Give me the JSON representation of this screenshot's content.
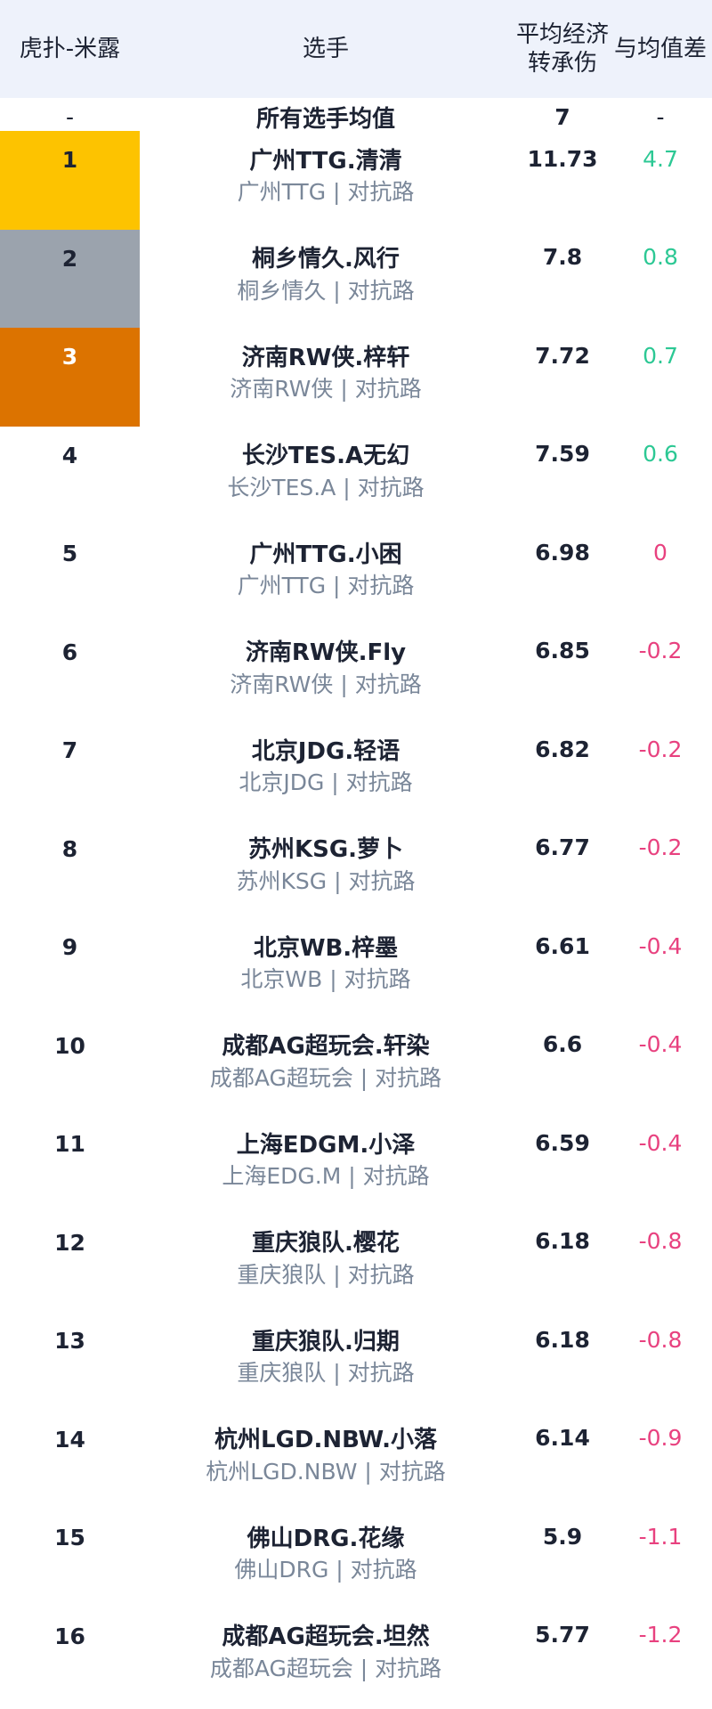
{
  "header": {
    "columns": [
      "虎扑-米露",
      "选手",
      "平均经济转承伤",
      "与均值差"
    ]
  },
  "average_row": {
    "rank": "-",
    "name": "所有选手均值",
    "value": "7",
    "diff": "-"
  },
  "rows": [
    {
      "rank": "1",
      "name": "广州TTG.清清",
      "subtitle": "广州TTG | 对抗路",
      "value": "11.73",
      "diff": "4.7"
    },
    {
      "rank": "2",
      "name": "桐乡情久.风行",
      "subtitle": "桐乡情久 | 对抗路",
      "value": "7.8",
      "diff": "0.8"
    },
    {
      "rank": "3",
      "name": "济南RW侠.梓轩",
      "subtitle": "济南RW侠 | 对抗路",
      "value": "7.72",
      "diff": "0.7"
    },
    {
      "rank": "4",
      "name": "长沙TES.A无幻",
      "subtitle": "长沙TES.A | 对抗路",
      "value": "7.59",
      "diff": "0.6"
    },
    {
      "rank": "5",
      "name": "广州TTG.小困",
      "subtitle": "广州TTG | 对抗路",
      "value": "6.98",
      "diff": "0"
    },
    {
      "rank": "6",
      "name": "济南RW侠.Fly",
      "subtitle": "济南RW侠 | 对抗路",
      "value": "6.85",
      "diff": "-0.2"
    },
    {
      "rank": "7",
      "name": "北京JDG.轻语",
      "subtitle": "北京JDG | 对抗路",
      "value": "6.82",
      "diff": "-0.2"
    },
    {
      "rank": "8",
      "name": "苏州KSG.萝卜",
      "subtitle": "苏州KSG | 对抗路",
      "value": "6.77",
      "diff": "-0.2"
    },
    {
      "rank": "9",
      "name": "北京WB.梓墨",
      "subtitle": "北京WB | 对抗路",
      "value": "6.61",
      "diff": "-0.4"
    },
    {
      "rank": "10",
      "name": "成都AG超玩会.轩染",
      "subtitle": "成都AG超玩会 | 对抗路",
      "value": "6.6",
      "diff": "-0.4"
    },
    {
      "rank": "11",
      "name": "上海EDGM.小泽",
      "subtitle": "上海EDG.M | 对抗路",
      "value": "6.59",
      "diff": "-0.4"
    },
    {
      "rank": "12",
      "name": "重庆狼队.樱花",
      "subtitle": "重庆狼队 | 对抗路",
      "value": "6.18",
      "diff": "-0.8"
    },
    {
      "rank": "13",
      "name": "重庆狼队.归期",
      "subtitle": "重庆狼队 | 对抗路",
      "value": "6.18",
      "diff": "-0.8"
    },
    {
      "rank": "14",
      "name": "杭州LGD.NBW.小落",
      "subtitle": "杭州LGD.NBW | 对抗路",
      "value": "6.14",
      "diff": "-0.9"
    },
    {
      "rank": "15",
      "name": "佛山DRG.花缘",
      "subtitle": "佛山DRG | 对抗路",
      "value": "5.9",
      "diff": "-1.1"
    },
    {
      "rank": "16",
      "name": "成都AG超玩会.坦然",
      "subtitle": "成都AG超玩会 | 对抗路",
      "value": "5.77",
      "diff": "-1.2"
    }
  ]
}
